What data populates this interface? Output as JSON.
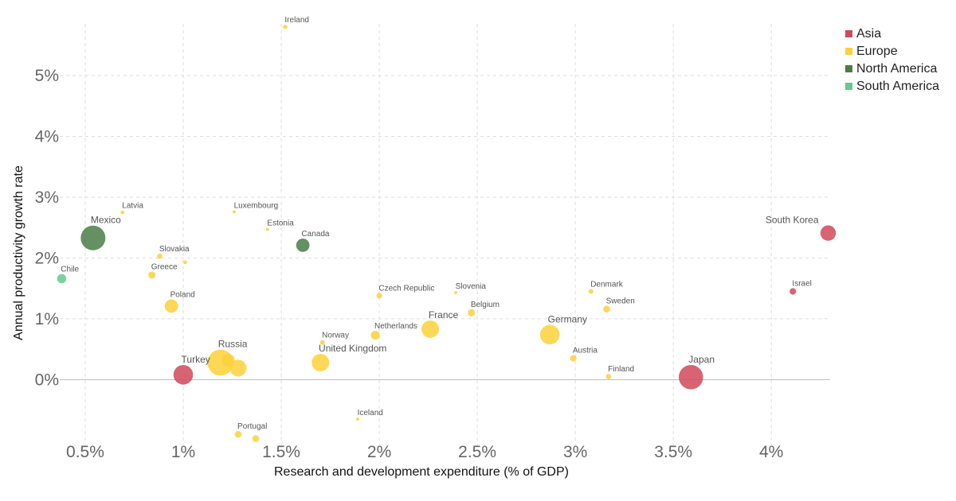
{
  "chart_data": {
    "type": "scatter",
    "title": "",
    "xlabel": "Research and development expenditure (% of GDP)",
    "ylabel": "Annual productivity growth rate",
    "xlim": [
      0.37,
      4.3
    ],
    "ylim": [
      -1.08,
      5.85
    ],
    "x_ticks": [
      {
        "value": 0.5,
        "label": "0.5%"
      },
      {
        "value": 1.0,
        "label": "1%"
      },
      {
        "value": 1.5,
        "label": "1.5%"
      },
      {
        "value": 2.0,
        "label": "2%"
      },
      {
        "value": 2.5,
        "label": "2.5%"
      },
      {
        "value": 3.0,
        "label": "3%"
      },
      {
        "value": 3.5,
        "label": "3.5%"
      },
      {
        "value": 4.0,
        "label": "4%"
      }
    ],
    "y_ticks": [
      {
        "value": 0,
        "label": "0%"
      },
      {
        "value": 1,
        "label": "1%"
      },
      {
        "value": 2,
        "label": "2%"
      },
      {
        "value": 3,
        "label": "3%"
      },
      {
        "value": 4,
        "label": "4%"
      },
      {
        "value": 5,
        "label": "5%"
      }
    ],
    "grid": true,
    "legend_position": "top-right",
    "legend": [
      {
        "name": "Asia",
        "color": "#d1495b"
      },
      {
        "name": "Europe",
        "color": "#fdd13a"
      },
      {
        "name": "North America",
        "color": "#4a7c45"
      },
      {
        "name": "South America",
        "color": "#66c88c"
      }
    ],
    "points": [
      {
        "name": "Ireland",
        "x": 1.52,
        "y": 5.8,
        "size": 0.4,
        "region": "Europe"
      },
      {
        "name": "Latvia",
        "x": 0.69,
        "y": 2.75,
        "size": 0.3,
        "region": "Europe"
      },
      {
        "name": "Luxembourg",
        "x": 1.26,
        "y": 2.76,
        "size": 0.2,
        "region": "Europe"
      },
      {
        "name": "Mexico",
        "x": 0.54,
        "y": 2.33,
        "size": 13,
        "region": "North America"
      },
      {
        "name": "Estonia",
        "x": 1.43,
        "y": 2.47,
        "size": 0.2,
        "region": "Europe"
      },
      {
        "name": "Canada",
        "x": 1.61,
        "y": 2.21,
        "size": 3.8,
        "region": "North America"
      },
      {
        "name": "Slovakia",
        "x": 0.88,
        "y": 2.03,
        "size": 0.6,
        "region": "Europe"
      },
      {
        "name": "",
        "x": 1.01,
        "y": 1.93,
        "size": 0.3,
        "region": "Europe"
      },
      {
        "name": "Greece",
        "x": 0.84,
        "y": 1.72,
        "size": 1.1,
        "region": "Europe"
      },
      {
        "name": "Chile",
        "x": 0.38,
        "y": 1.66,
        "size": 1.8,
        "region": "South America"
      },
      {
        "name": "South Korea",
        "x": 4.29,
        "y": 2.41,
        "size": 5.1,
        "region": "Asia"
      },
      {
        "name": "Israel",
        "x": 4.11,
        "y": 1.45,
        "size": 0.9,
        "region": "Asia"
      },
      {
        "name": "Czech Republic",
        "x": 2.0,
        "y": 1.38,
        "size": 0.7,
        "region": "Europe"
      },
      {
        "name": "Slovenia",
        "x": 2.39,
        "y": 1.43,
        "size": 0.2,
        "region": "Europe"
      },
      {
        "name": "Denmark",
        "x": 3.08,
        "y": 1.45,
        "size": 0.5,
        "region": "Europe"
      },
      {
        "name": "Poland",
        "x": 0.94,
        "y": 1.21,
        "size": 3.8,
        "region": "Europe"
      },
      {
        "name": "Belgium",
        "x": 2.47,
        "y": 1.1,
        "size": 1.1,
        "region": "Europe"
      },
      {
        "name": "Sweden",
        "x": 3.16,
        "y": 1.16,
        "size": 1.0,
        "region": "Europe"
      },
      {
        "name": "France",
        "x": 2.26,
        "y": 0.83,
        "size": 6.5,
        "region": "Europe"
      },
      {
        "name": "Netherlands",
        "x": 1.98,
        "y": 0.73,
        "size": 1.7,
        "region": "Europe"
      },
      {
        "name": "Germany",
        "x": 2.87,
        "y": 0.74,
        "size": 8.2,
        "region": "Europe"
      },
      {
        "name": "Norway",
        "x": 1.71,
        "y": 0.61,
        "size": 0.5,
        "region": "Europe"
      },
      {
        "name": "Austria",
        "x": 2.99,
        "y": 0.35,
        "size": 0.9,
        "region": "Europe"
      },
      {
        "name": "Russia",
        "x": 1.19,
        "y": 0.28,
        "size": 14.4,
        "region": "Europe"
      },
      {
        "name": "",
        "x": 1.23,
        "y": 0.32,
        "size": 3.5,
        "region": "Europe"
      },
      {
        "name": "",
        "x": 1.28,
        "y": 0.19,
        "size": 6.0,
        "region": "Europe"
      },
      {
        "name": "United Kingdom",
        "x": 1.7,
        "y": 0.28,
        "size": 6.6,
        "region": "Europe"
      },
      {
        "name": "Turkey",
        "x": 1.0,
        "y": 0.08,
        "size": 8.2,
        "region": "Asia"
      },
      {
        "name": "Finland",
        "x": 3.17,
        "y": 0.05,
        "size": 0.6,
        "region": "Europe"
      },
      {
        "name": "Japan",
        "x": 3.59,
        "y": 0.04,
        "size": 12.7,
        "region": "Asia"
      },
      {
        "name": "Iceland",
        "x": 1.89,
        "y": -0.65,
        "size": 0.1,
        "region": "Europe"
      },
      {
        "name": "Portugal",
        "x": 1.28,
        "y": -0.9,
        "size": 1.0,
        "region": "Europe"
      },
      {
        "name": "",
        "x": 1.37,
        "y": -0.97,
        "size": 1.0,
        "region": "Europe"
      }
    ]
  }
}
